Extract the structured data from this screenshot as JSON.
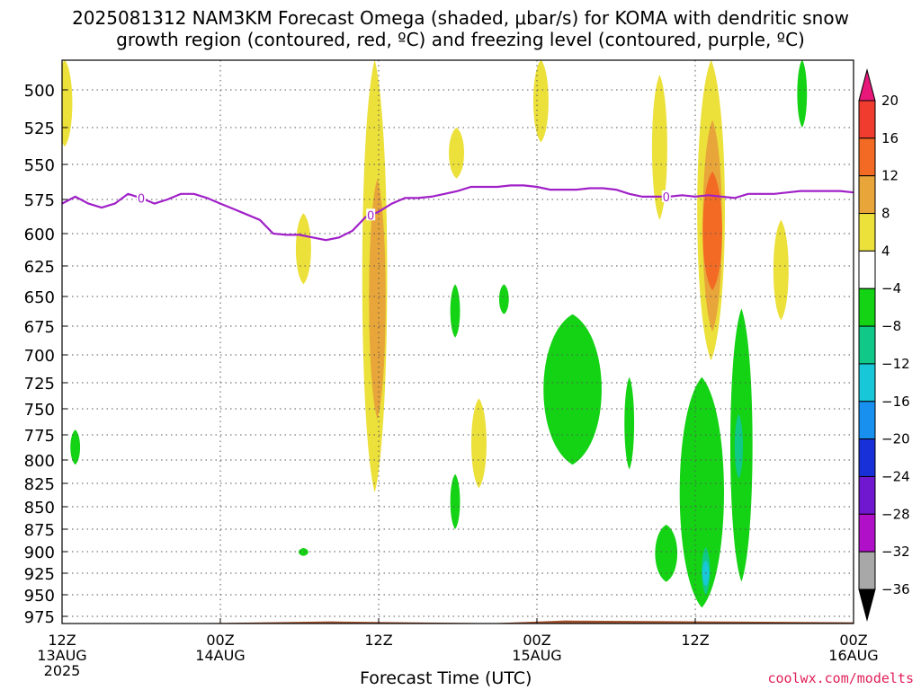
{
  "header": {
    "title_line1": "2025081312 NAM3KM Forecast Omega (shaded, μbar/s) for KOMA with dendritic snow",
    "title_line2": "growth region (contoured, red, ºC) and freezing level (contoured, purple, ºC)"
  },
  "footer": {
    "xlabel": "Forecast Time (UTC)",
    "credit": "coolwx.com/modelts"
  },
  "chart_data": {
    "type": "heatmap",
    "title": "2025081312 NAM3KM Forecast Omega (shaded, μbar/s) for KOMA with dendritic snow growth region (contoured, red, ºC) and freezing level (contoured, purple, ºC)",
    "xlabel": "Forecast Time (UTC)",
    "ylabel": "",
    "x_units": "forecast hour",
    "xlim": [
      0,
      60
    ],
    "ylim": [
      987,
      480
    ],
    "y_scale": "pressure",
    "grid": true,
    "x_ticks": [
      {
        "hour": 0,
        "labels": [
          "12Z",
          "13AUG",
          "2025"
        ]
      },
      {
        "hour": 12,
        "labels": [
          "00Z",
          "14AUG"
        ]
      },
      {
        "hour": 24,
        "labels": [
          "12Z"
        ]
      },
      {
        "hour": 36,
        "labels": [
          "00Z",
          "15AUG"
        ]
      },
      {
        "hour": 48,
        "labels": [
          "12Z"
        ]
      },
      {
        "hour": 60,
        "labels": [
          "00Z",
          "16AUG"
        ]
      }
    ],
    "y_ticks": [
      500,
      525,
      550,
      575,
      600,
      625,
      650,
      675,
      700,
      725,
      750,
      775,
      800,
      825,
      850,
      875,
      900,
      925,
      950,
      975
    ],
    "colorbar": {
      "labels": [
        "20",
        "16",
        "12",
        "8",
        "4",
        "−4",
        "−8",
        "−12",
        "−16",
        "−20",
        "−24",
        "−28",
        "−32",
        "−36"
      ],
      "bins": [
        {
          "range": ">20",
          "color": "#e8187a"
        },
        {
          "range": "16 to 20",
          "color": "#f03c2e"
        },
        {
          "range": "12 to 16",
          "color": "#f26a24"
        },
        {
          "range": "8 to 12",
          "color": "#e8a53a"
        },
        {
          "range": "4 to 8",
          "color": "#ece03a"
        },
        {
          "range": "-4 to 4",
          "color": "#ffffff"
        },
        {
          "range": "-8 to -4",
          "color": "#14d214"
        },
        {
          "range": "-12 to -8",
          "color": "#10c888"
        },
        {
          "range": "-16 to -12",
          "color": "#18c8d8"
        },
        {
          "range": "-20 to -16",
          "color": "#1890f0"
        },
        {
          "range": "-24 to -20",
          "color": "#1830d8"
        },
        {
          "range": "-28 to -24",
          "color": "#7018d0"
        },
        {
          "range": "-32 to -28",
          "color": "#b010c8"
        },
        {
          "range": "-36 to -32",
          "color": "#a8a8a8"
        },
        {
          "range": "<-36",
          "color": "#000000"
        }
      ]
    },
    "freezing_level": {
      "label": "0",
      "color": "#a020c8",
      "hours": [
        0,
        1,
        2,
        3,
        4,
        5,
        6,
        7,
        8,
        9,
        10,
        11,
        12,
        13,
        14,
        15,
        16,
        17,
        18,
        19,
        20,
        21,
        22,
        23,
        24,
        25,
        26,
        27,
        28,
        29,
        30,
        31,
        32,
        33,
        34,
        35,
        36,
        37,
        38,
        39,
        40,
        41,
        42,
        43,
        44,
        45,
        46,
        47,
        48,
        49,
        50,
        51,
        52,
        53,
        54,
        55,
        56,
        57,
        58,
        59,
        60
      ],
      "pressure": [
        578,
        573,
        578,
        581,
        578,
        571,
        574,
        578,
        575,
        571,
        571,
        574,
        578,
        582,
        586,
        590,
        600,
        601,
        601,
        603,
        605,
        603,
        598,
        588,
        584,
        578,
        574,
        574,
        573,
        571,
        569,
        566,
        566,
        566,
        565,
        565,
        566,
        568,
        568,
        568,
        567,
        567,
        568,
        571,
        573,
        573,
        573,
        572,
        573,
        572,
        573,
        574,
        571,
        571,
        571,
        570,
        569,
        569,
        569,
        569,
        570
      ]
    },
    "label_positions_on_freezing_line": [
      {
        "hour": 6,
        "text": "0"
      },
      {
        "hour": 23.4,
        "text": "0"
      },
      {
        "hour": 45.8,
        "text": "0"
      }
    ],
    "shaded_regions": [
      {
        "bin": "4 to 8",
        "hour": 0.2,
        "p_top": 480,
        "p_bottom": 538
      },
      {
        "bin": "-8 to -4",
        "hour": 1.0,
        "p_top": 770,
        "p_bottom": 805
      },
      {
        "bin": "4 to 8",
        "hour": 18.3,
        "p_top": 585,
        "p_bottom": 640
      },
      {
        "bin": "-8 to -4",
        "hour": 18.3,
        "p_top": 896,
        "p_bottom": 905
      },
      {
        "bin": "4 to 8",
        "hour": 23.7,
        "p_top": 480,
        "p_bottom": 835
      },
      {
        "bin": "8 to 12",
        "hour": 23.9,
        "p_top": 560,
        "p_bottom": 760
      },
      {
        "bin": "4 to 8",
        "hour": 29.9,
        "p_top": 525,
        "p_bottom": 560
      },
      {
        "bin": "-8 to -4",
        "hour": 29.8,
        "p_top": 640,
        "p_bottom": 685
      },
      {
        "bin": "-8 to -4",
        "hour": 29.8,
        "p_top": 815,
        "p_bottom": 875
      },
      {
        "bin": "4 to 8",
        "hour": 31.6,
        "p_top": 740,
        "p_bottom": 830
      },
      {
        "bin": "-8 to -4",
        "hour": 33.5,
        "p_top": 640,
        "p_bottom": 665
      },
      {
        "bin": "4 to 8",
        "hour": 36.3,
        "p_top": 480,
        "p_bottom": 535
      },
      {
        "bin": "-8 to -4",
        "hour": 38.7,
        "p_top": 665,
        "p_bottom": 805
      },
      {
        "bin": "-8 to -4",
        "hour": 43.0,
        "p_top": 720,
        "p_bottom": 810
      },
      {
        "bin": "4 to 8",
        "hour": 45.3,
        "p_top": 490,
        "p_bottom": 590
      },
      {
        "bin": "4 to 8",
        "hour": 49.2,
        "p_top": 480,
        "p_bottom": 705
      },
      {
        "bin": "8 to 12",
        "hour": 49.3,
        "p_top": 520,
        "p_bottom": 680
      },
      {
        "bin": "12 to 16",
        "hour": 49.3,
        "p_top": 555,
        "p_bottom": 645
      },
      {
        "bin": "-8 to -4",
        "hour": 48.5,
        "p_top": 720,
        "p_bottom": 965
      },
      {
        "bin": "-8 to -4",
        "hour": 45.8,
        "p_top": 870,
        "p_bottom": 935
      },
      {
        "bin": "-12 to -8",
        "hour": 48.8,
        "p_top": 895,
        "p_bottom": 950
      },
      {
        "bin": "-16 to -12",
        "hour": 48.8,
        "p_top": 910,
        "p_bottom": 940
      },
      {
        "bin": "-8 to -4",
        "hour": 51.5,
        "p_top": 660,
        "p_bottom": 935
      },
      {
        "bin": "-12 to -8",
        "hour": 51.3,
        "p_top": 755,
        "p_bottom": 820
      },
      {
        "bin": "4 to 8",
        "hour": 54.5,
        "p_top": 590,
        "p_bottom": 670
      },
      {
        "bin": "-8 to -4",
        "hour": 56.1,
        "p_top": 480,
        "p_bottom": 525
      }
    ],
    "terrain": {
      "color": "#a0522d",
      "surface_pressure_hpa": 983
    }
  }
}
